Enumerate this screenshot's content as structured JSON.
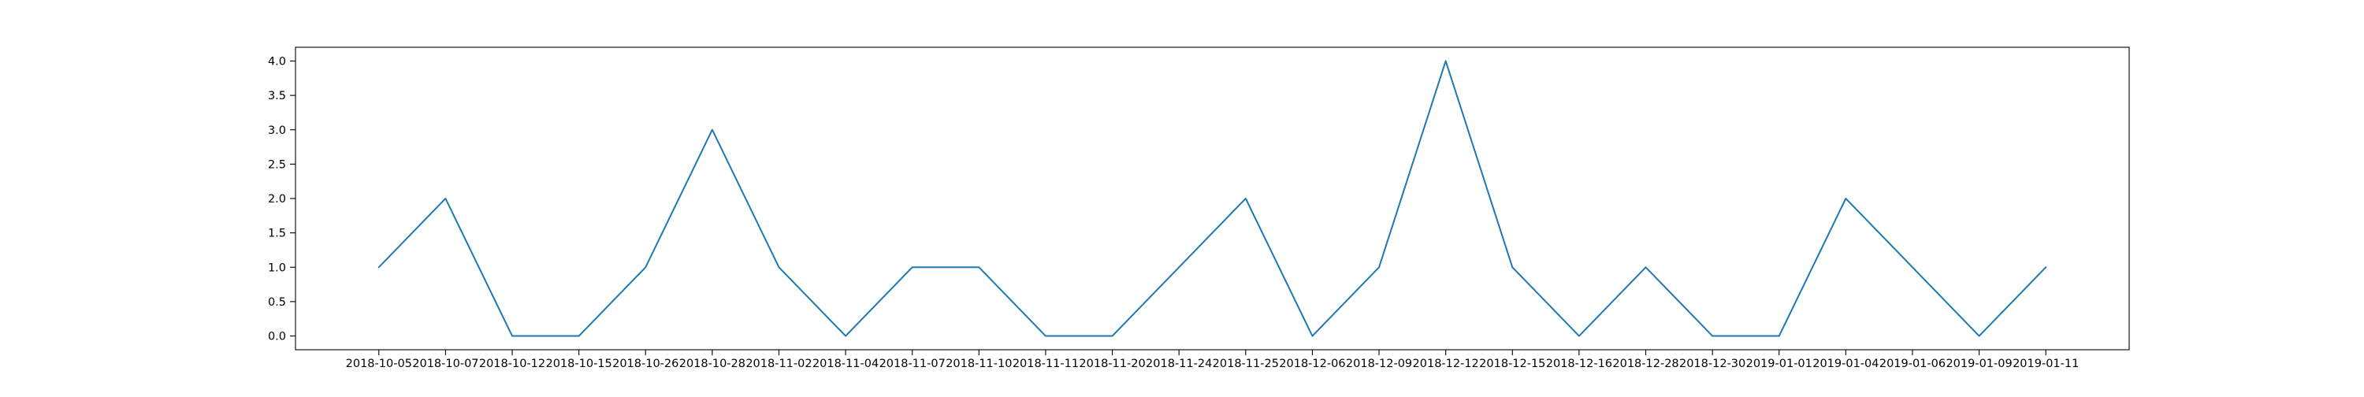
{
  "chart_data": {
    "type": "line",
    "title": "",
    "xlabel": "",
    "ylabel": "",
    "grid": false,
    "legend": "none",
    "line_color": "#1f77b4",
    "categories": [
      "2018-10-05",
      "2018-10-07",
      "2018-10-12",
      "2018-10-15",
      "2018-10-26",
      "2018-10-28",
      "2018-11-02",
      "2018-11-04",
      "2018-11-07",
      "2018-11-10",
      "2018-11-11",
      "2018-11-20",
      "2018-11-24",
      "2018-11-25",
      "2018-12-06",
      "2018-12-09",
      "2018-12-12",
      "2018-12-15",
      "2018-12-16",
      "2018-12-28",
      "2018-12-30",
      "2019-01-01",
      "2019-01-04",
      "2019-01-06",
      "2019-01-09",
      "2019-01-11"
    ],
    "values": [
      1,
      2,
      0,
      0,
      1,
      3,
      1,
      0,
      1,
      1,
      0,
      0,
      1,
      2,
      0,
      1,
      4,
      1,
      0,
      1,
      0,
      0,
      2,
      1,
      0,
      1
    ],
    "ylim": [
      -0.2,
      4.2
    ],
    "yticks": [
      {
        "value": 0.0,
        "label": "0.0"
      },
      {
        "value": 0.5,
        "label": "0.5"
      },
      {
        "value": 1.0,
        "label": "1.0"
      },
      {
        "value": 1.5,
        "label": "1.5"
      },
      {
        "value": 2.0,
        "label": "2.0"
      },
      {
        "value": 2.5,
        "label": "2.5"
      },
      {
        "value": 3.0,
        "label": "3.0"
      },
      {
        "value": 3.5,
        "label": "3.5"
      },
      {
        "value": 4.0,
        "label": "4.0"
      }
    ]
  }
}
